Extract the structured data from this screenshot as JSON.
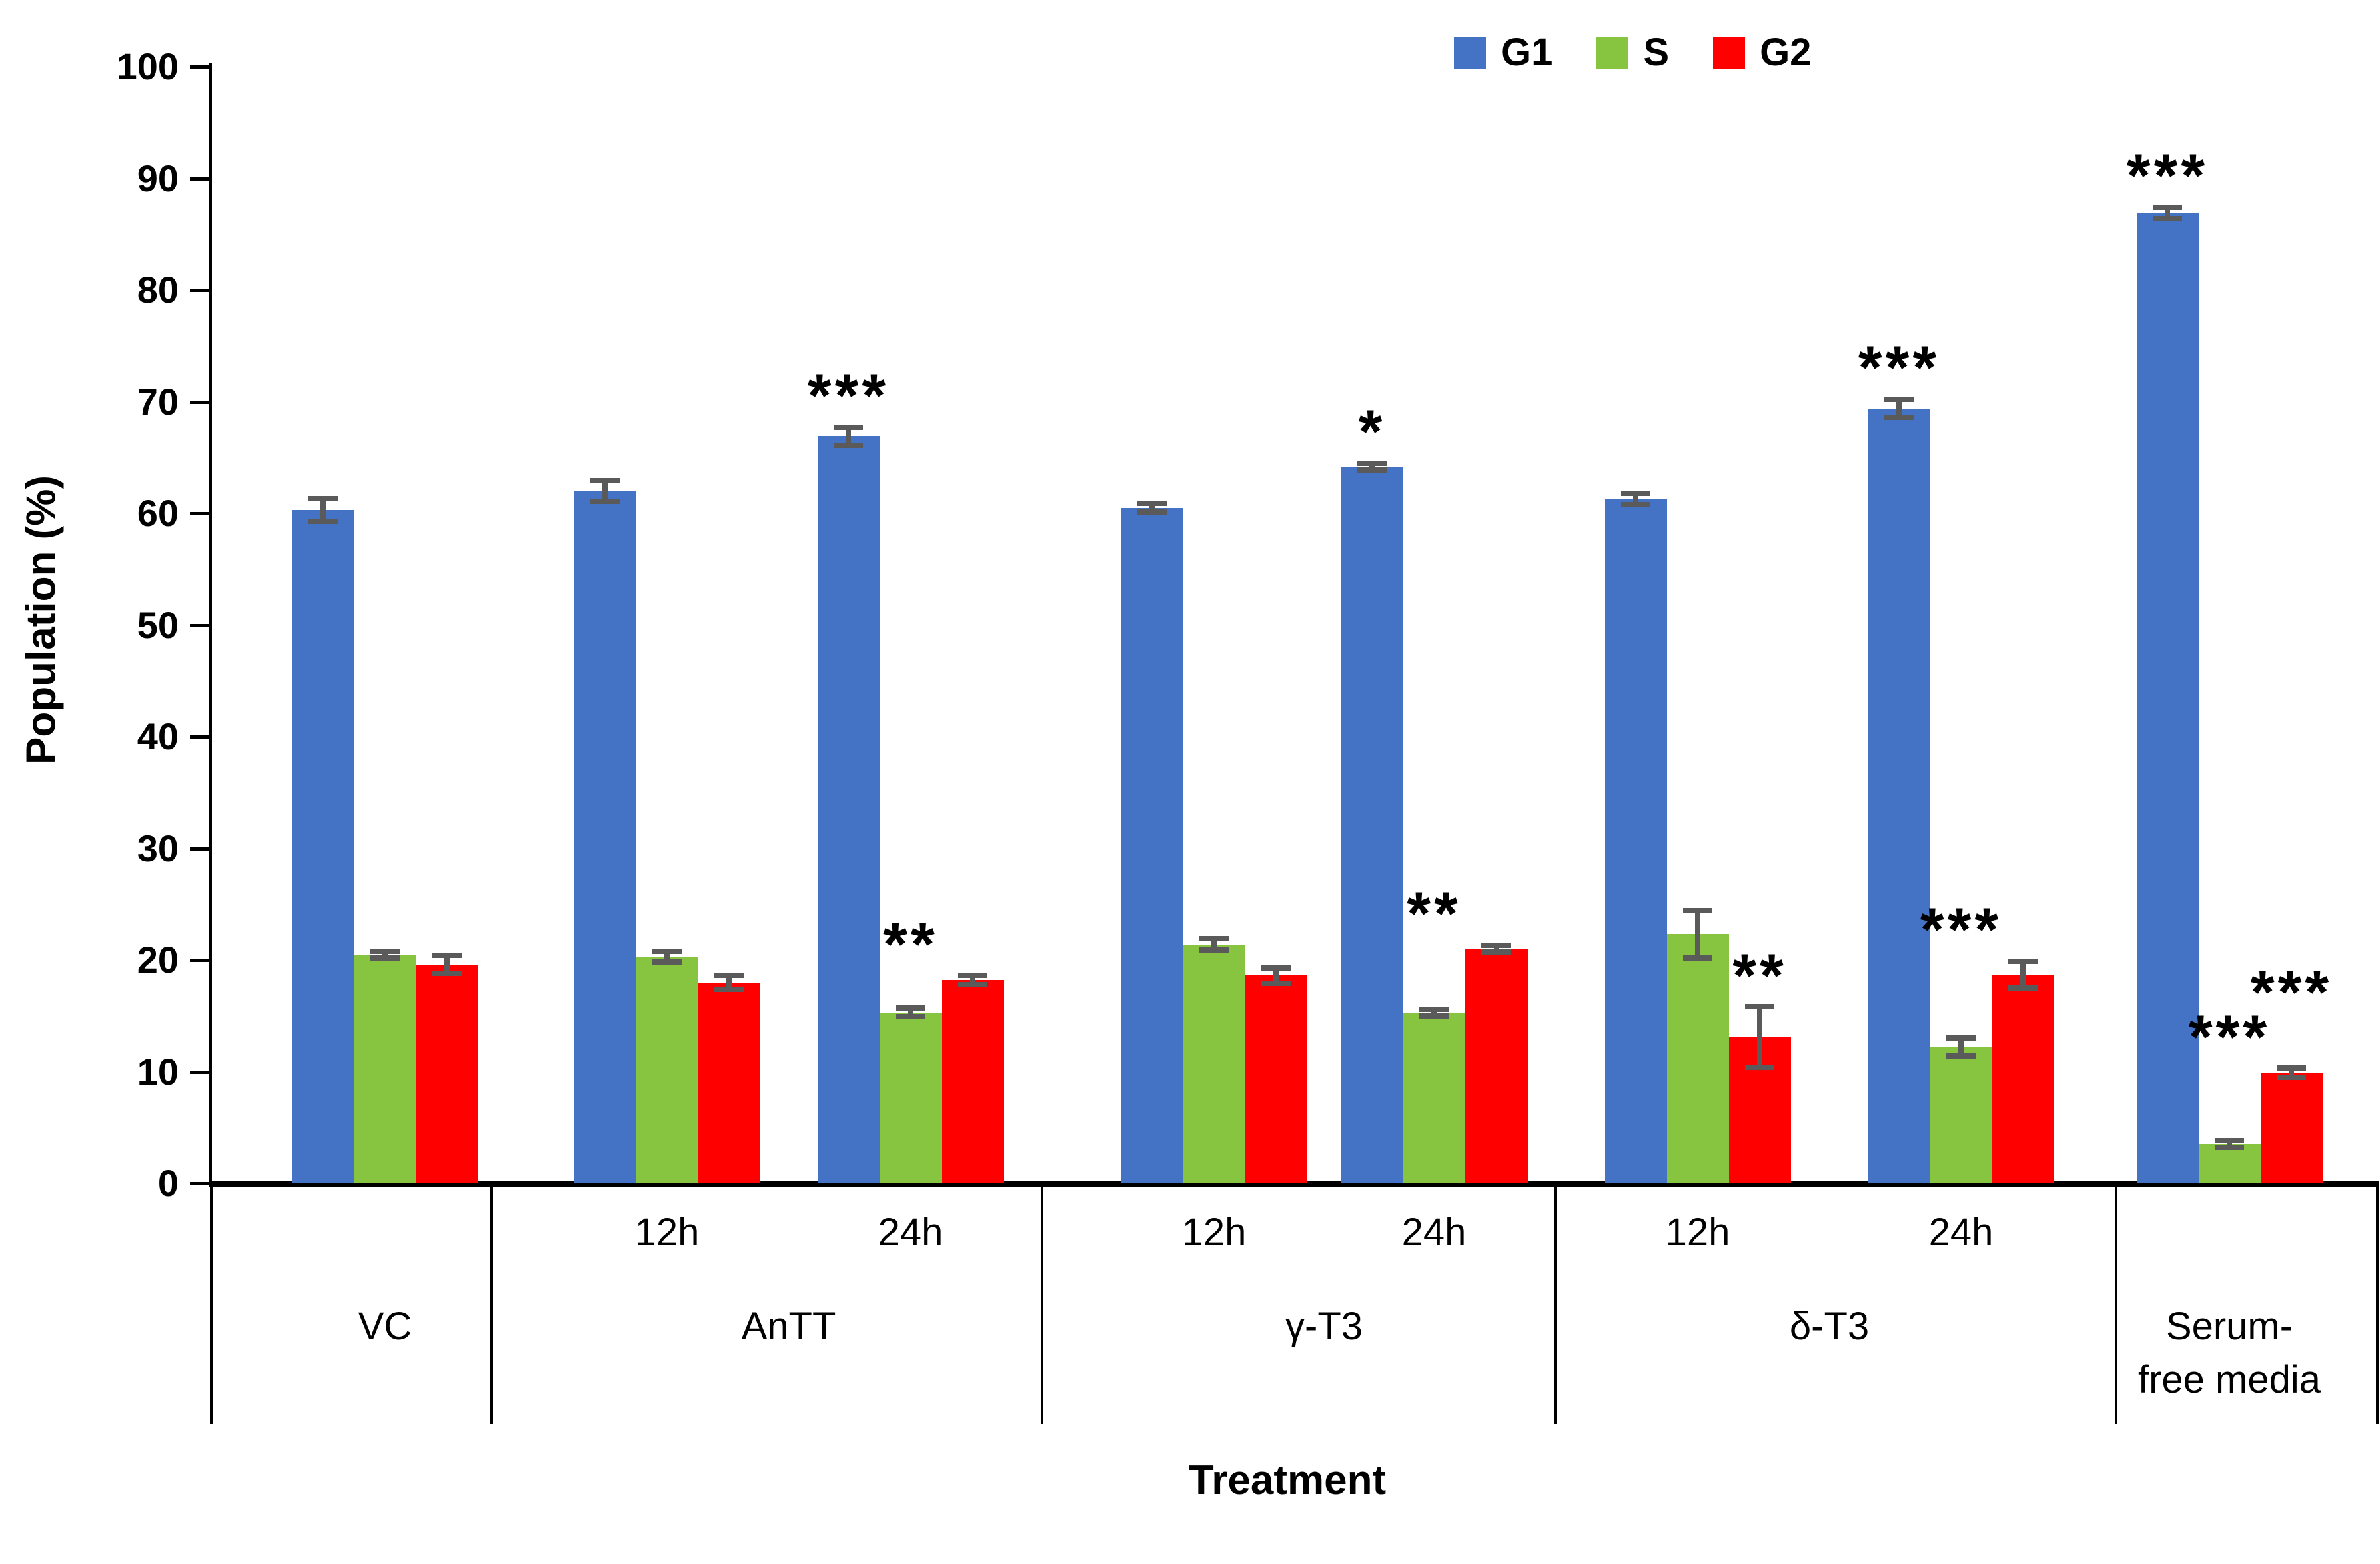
{
  "chart_data": {
    "type": "bar",
    "title": "",
    "ylabel": "Population (%)",
    "xlabel": "Treatment",
    "ylim": [
      0,
      100
    ],
    "ytick_step": 10,
    "grid": false,
    "legend_position": "top-center",
    "series_names": [
      "G1",
      "S",
      "G2"
    ],
    "series_colors": [
      "#4472C4",
      "#87C540",
      "#FE0000"
    ],
    "errorbar_color": "#5a5a5a",
    "groups": [
      {
        "label": "VC",
        "label_lines": [
          "VC"
        ],
        "subgroups": [
          {
            "time": "",
            "values": [
              60.3,
              20.5,
              19.6
            ],
            "errors": [
              1.0,
              0.3,
              0.8
            ],
            "sigs": [
              "",
              "",
              ""
            ]
          }
        ]
      },
      {
        "label": "AnTT",
        "label_lines": [
          "AnTT"
        ],
        "subgroups": [
          {
            "time": "12h",
            "values": [
              62.0,
              20.3,
              18.0
            ],
            "errors": [
              0.9,
              0.5,
              0.6
            ],
            "sigs": [
              "",
              "",
              ""
            ]
          },
          {
            "time": "24h",
            "values": [
              66.9,
              15.3,
              18.2
            ],
            "errors": [
              0.8,
              0.4,
              0.4
            ],
            "sigs": [
              "***",
              "**",
              ""
            ]
          }
        ]
      },
      {
        "label": "γ-T3",
        "label_lines": [
          "γ-T3"
        ],
        "subgroups": [
          {
            "time": "12h",
            "values": [
              60.5,
              21.4,
              18.6
            ],
            "errors": [
              0.4,
              0.5,
              0.7
            ],
            "sigs": [
              "",
              "",
              ""
            ]
          },
          {
            "time": "24h",
            "values": [
              64.2,
              15.3,
              21.0
            ],
            "errors": [
              0.3,
              0.3,
              0.3
            ],
            "sigs": [
              "*",
              "**",
              ""
            ]
          }
        ]
      },
      {
        "label": "δ-T3",
        "label_lines": [
          "δ-T3"
        ],
        "subgroups": [
          {
            "time": "12h",
            "values": [
              61.3,
              22.3,
              13.1
            ],
            "errors": [
              0.5,
              2.1,
              2.7
            ],
            "sigs": [
              "",
              "",
              "**"
            ]
          },
          {
            "time": "24h",
            "values": [
              69.4,
              12.2,
              18.7
            ],
            "errors": [
              0.8,
              0.8,
              1.2
            ],
            "sigs": [
              "***",
              "***",
              ""
            ]
          }
        ]
      },
      {
        "label": "Serum-free media",
        "label_lines": [
          "Serum-",
          "free media"
        ],
        "subgroups": [
          {
            "time": "",
            "values": [
              86.9,
              3.5,
              9.9
            ],
            "errors": [
              0.5,
              0.3,
              0.4
            ],
            "sigs": [
              "***",
              "***",
              "***"
            ]
          }
        ]
      }
    ]
  }
}
